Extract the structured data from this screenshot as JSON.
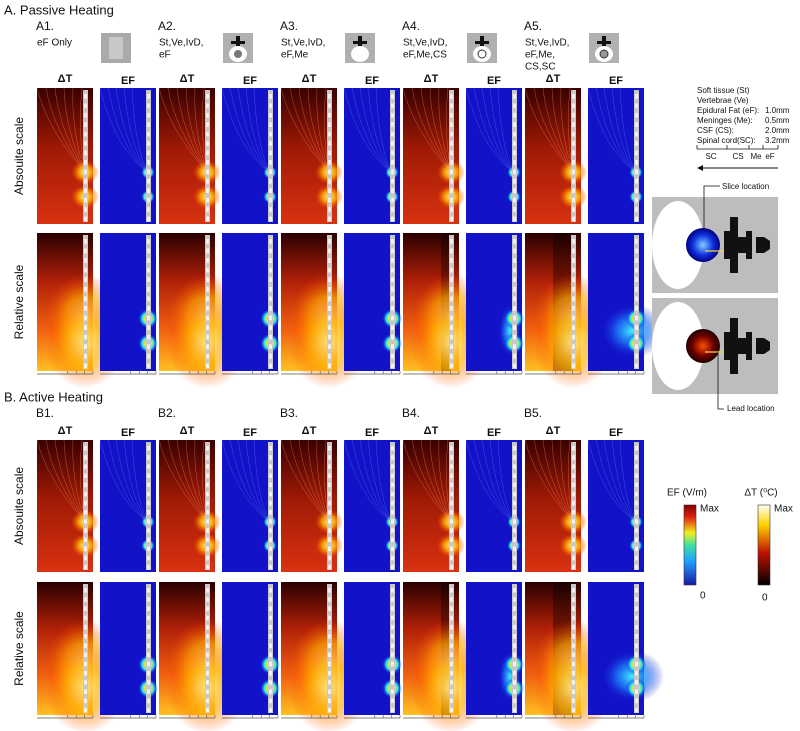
{
  "sections": [
    {
      "title": "A. Passive Heating",
      "row_labels": [
        "Absouite scale",
        "Relative scale"
      ],
      "panels": [
        {
          "label": "A1.",
          "desc": [
            "eF Only"
          ]
        },
        {
          "label": "A2.",
          "desc": [
            "St,Ve,IvD,",
            "eF"
          ]
        },
        {
          "label": "A3.",
          "desc": [
            "St,Ve,IvD,",
            "eF,Me"
          ]
        },
        {
          "label": "A4.",
          "desc": [
            "St,Ve,IvD,",
            "eF,Me,CS"
          ]
        },
        {
          "label": "A5.",
          "desc": [
            "St,Ve,IvD,",
            "eF,Me,",
            "CS,SC"
          ]
        }
      ]
    },
    {
      "title": "B. Active Heating",
      "row_labels": [
        "Absouite scale",
        "Relative scale"
      ],
      "panels": [
        {
          "label": "B1."
        },
        {
          "label": "B2."
        },
        {
          "label": "B3."
        },
        {
          "label": "B4."
        },
        {
          "label": "B5."
        }
      ]
    }
  ],
  "column_labels": [
    "ΔT",
    "EF"
  ],
  "layer_legend": {
    "layers": [
      {
        "name": "Soft tissue (St)"
      },
      {
        "name": "Vertebrae (Ve)"
      },
      {
        "name": "Epidural Fat (eF):",
        "thickness": "1.0mm"
      },
      {
        "name": "Meninges (Me):",
        "thickness": "0.5mm"
      },
      {
        "name": "CSF (CS):",
        "thickness": "2.0mm"
      },
      {
        "name": "Spinal cord(SC):",
        "thickness": "3.2mm"
      }
    ],
    "axis_labels": [
      "SC",
      "CS",
      "Me",
      "eF"
    ]
  },
  "slice_labels": [
    "Slice location",
    "Lead location"
  ],
  "colorbars": [
    {
      "title": "EF (V/m)",
      "max": "Max",
      "min": "0"
    },
    {
      "title": "ΔT (⁰C)",
      "max": "Max",
      "min": "0"
    }
  ]
}
